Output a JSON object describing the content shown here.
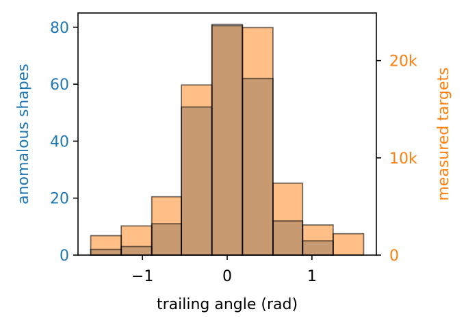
{
  "chart_data": {
    "type": "bar",
    "xlabel": "trailing angle (rad)",
    "ylabel_left": "anomalous shapes",
    "ylabel_right": "measured targets",
    "x_ticks": [
      "−1",
      "0",
      "1"
    ],
    "x_tick_values": [
      -1,
      0,
      1
    ],
    "x_range": [
      -1.76,
      1.76
    ],
    "left_ticks": [
      "0",
      "20",
      "40",
      "60",
      "80"
    ],
    "left_tick_values": [
      0,
      20,
      40,
      60,
      80
    ],
    "left_ylim": [
      0,
      85
    ],
    "right_ticks": [
      "0",
      "10k",
      "20k"
    ],
    "right_tick_values": [
      0,
      10000,
      20000
    ],
    "right_ylim": [
      0,
      24900
    ],
    "bin_edges": [
      -1.61,
      -1.25,
      -0.89,
      -0.54,
      -0.18,
      0.18,
      0.54,
      0.89,
      1.25,
      1.61
    ],
    "series": [
      {
        "name": "anomalous shapes",
        "axis": "left",
        "color": "#1f77b4",
        "values": [
          2,
          3,
          11,
          52,
          81,
          62,
          12,
          5,
          0
        ]
      },
      {
        "name": "measured targets",
        "axis": "right",
        "color": "#ff7f0e",
        "values": [
          2000,
          3000,
          6000,
          17500,
          23600,
          23400,
          7400,
          3100,
          2200
        ]
      }
    ],
    "colors": {
      "left_axis": "#1f77b4",
      "right_axis": "#ff7f0e",
      "bar_fill": "#ffbf87",
      "bar_overlap": "#c79a72",
      "bar_edge": "#000000"
    },
    "grid": false
  }
}
